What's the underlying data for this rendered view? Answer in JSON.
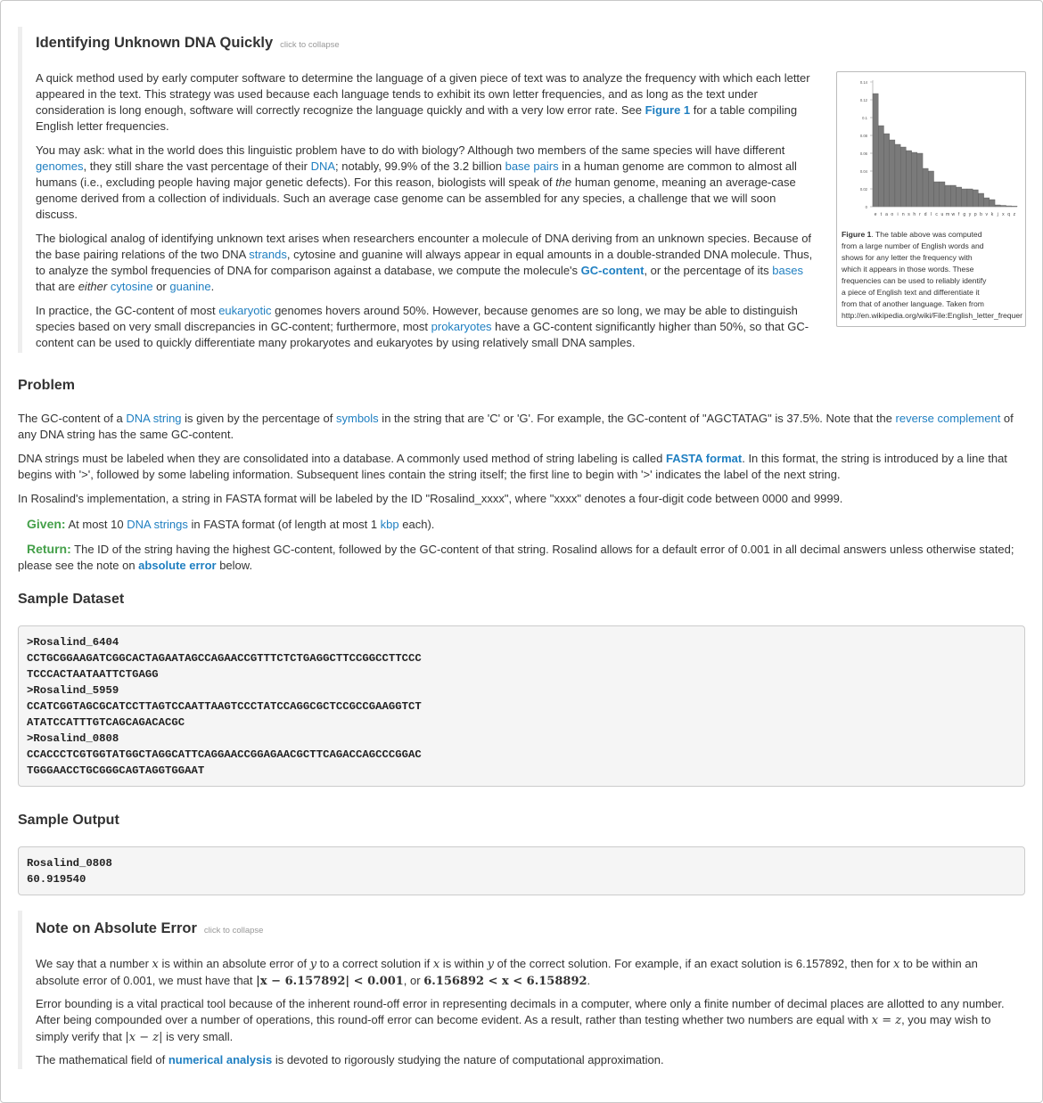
{
  "intro": {
    "title": "Identifying Unknown DNA Quickly",
    "collapse": "click to collapse",
    "p1": {
      "a": "A quick method used by early computer software to determine the language of a given piece of text was to analyze the frequency with which each letter appeared in the text. This strategy was used because each language tends to exhibit its own letter frequencies, and as long as the text under consideration is long enough, software will correctly recognize the language quickly and with a very low error rate. See ",
      "link": "Figure 1",
      "b": " for a table compiling English letter frequencies."
    },
    "p2": {
      "a": "You may ask: what in the world does this linguistic problem have to do with biology? Although two members of the same species will have different ",
      "genomes": "genomes",
      "b": ", they still share the vast percentage of their ",
      "dna": "DNA",
      "c": "; notably, 99.9% of the 3.2 billion ",
      "base_pairs": "base pairs",
      "d": " in a human genome are common to almost all humans (i.e., excluding people having major genetic defects). For this reason, biologists will speak of ",
      "the": "the",
      "e": " human genome, meaning an average-case genome derived from a collection of individuals. Such an average case genome can be assembled for any species, a challenge that we will soon discuss."
    },
    "p3": {
      "a": "The biological analog of identifying unknown text arises when researchers encounter a molecule of DNA deriving from an unknown species. Because of the base pairing relations of the two DNA ",
      "strands": "strands",
      "b": ", cytosine and guanine will always appear in equal amounts in a double-stranded DNA molecule. Thus, to analyze the symbol frequencies of DNA for comparison against a database, we compute the molecule's ",
      "gc": "GC-content",
      "c": ", or the percentage of its ",
      "bases": "bases",
      "d": " that are ",
      "either": "either",
      "e": " ",
      "cytosine": "cytosine",
      "f": " or ",
      "guanine": "guanine",
      "g": "."
    },
    "p4": {
      "a": "In practice, the GC-content of most ",
      "eukaryotic": "eukaryotic",
      "b": " genomes hovers around 50%. However, because genomes are so long, we may be able to distinguish species based on very small discrepancies in GC-content; furthermore, most ",
      "prokaryotes": "prokaryotes",
      "c": " have a GC-content significantly higher than 50%, so that GC-content can be used to quickly differentiate many prokaryotes and eukaryotes by using relatively small DNA samples."
    },
    "figure": {
      "caption_label": "Figure 1",
      "caption_lines": [
        ". The table above was computed",
        "from a large number of English words and",
        "shows for any letter the frequency with",
        "which it appears in those words. These",
        "frequencies can be used to reliably identify",
        "a piece of English text and differentiate it",
        "from that of another language. Taken from",
        "http://en.wikipedia.org/wiki/File:English_letter_frequency_(frequency).svg"
      ]
    }
  },
  "chart_data": {
    "type": "bar",
    "categories": [
      "e",
      "t",
      "a",
      "o",
      "i",
      "n",
      "s",
      "h",
      "r",
      "d",
      "l",
      "c",
      "u",
      "m",
      "w",
      "f",
      "g",
      "y",
      "p",
      "b",
      "v",
      "k",
      "j",
      "x",
      "q",
      "z"
    ],
    "values": [
      0.127,
      0.091,
      0.082,
      0.075,
      0.07,
      0.067,
      0.063,
      0.061,
      0.06,
      0.043,
      0.04,
      0.028,
      0.028,
      0.024,
      0.024,
      0.022,
      0.02,
      0.02,
      0.019,
      0.015,
      0.01,
      0.008,
      0.002,
      0.0015,
      0.001,
      0.0007
    ],
    "ylim": [
      0,
      0.14
    ],
    "yticks": [
      "0",
      "0.02",
      "0.04",
      "0.06",
      "0.08",
      "0.1",
      "0.12",
      "0.14"
    ],
    "bar_color": "#7a7a7a"
  },
  "problem": {
    "heading": "Problem",
    "p1": {
      "a": "The GC-content of a ",
      "dna_string": "DNA string",
      "b": " is given by the percentage of ",
      "symbols": "symbols",
      "c": " in the string that are 'C' or 'G'. For example, the GC-content of \"AGCTATAG\" is 37.5%. Note that the ",
      "revcomp": "reverse complement",
      "d": " of any DNA string has the same GC-content."
    },
    "p2": {
      "a": "DNA strings must be labeled when they are consolidated into a database. A commonly used method of string labeling is called ",
      "fasta": "FASTA format",
      "b": ". In this format, the string is introduced by a line that begins with '>', followed by some labeling information. Subsequent lines contain the string itself; the first line to begin with '>' indicates the label of the next string."
    },
    "p3": "In Rosalind's implementation, a string in FASTA format will be labeled by the ID \"Rosalind_xxxx\", where \"xxxx\" denotes a four-digit code between 0000 and 9999.",
    "given": {
      "label": "Given:",
      "a": " At most 10 ",
      "dna_strings": "DNA strings",
      "b": " in FASTA format (of length at most 1 ",
      "kbp": "kbp",
      "c": " each)."
    },
    "ret": {
      "label": "Return:",
      "a": " The ID of the string having the highest GC-content, followed by the GC-content of that string. Rosalind allows for a default error of 0.001 in all decimal answers unless otherwise stated; please see the note on ",
      "abs": "absolute error",
      "b": " below."
    }
  },
  "sample_dataset": {
    "heading": "Sample Dataset",
    "text": ">Rosalind_6404\nCCTGCGGAAGATCGGCACTAGAATAGCCAGAACCGTTTCTCTGAGGCTTCCGGCCTTCCC\nTCCCACTAATAATTCTGAGG\n>Rosalind_5959\nCCATCGGTAGCGCATCCTTAGTCCAATTAAGTCCCTATCCAGGCGCTCCGCCGAAGGTCT\nATATCCATTTGTCAGCAGACACGC\n>Rosalind_0808\nCCACCCTCGTGGTATGGCTAGGCATTCAGGAACCGGAGAACGCTTCAGACCAGCCCGGAC\nTGGGAACCTGCGGGCAGTAGGTGGAAT"
  },
  "sample_output": {
    "heading": "Sample Output",
    "text": "Rosalind_0808\n60.919540"
  },
  "note": {
    "title": "Note on Absolute Error",
    "collapse": "click to collapse",
    "p1": {
      "a": "We say that a number ",
      "x1": "x",
      "b": " is within an absolute error of ",
      "y1": "y",
      "c": " to a correct solution if ",
      "x2": "x",
      "d": " is within ",
      "y2": "y",
      "e": " of the correct solution. For example, if an exact solution is 6.157892, then for ",
      "x3": "x",
      "f": " to be within an absolute error of 0.001, we must have that ",
      "m1": "|x − 6.157892| < 0.001",
      "g": ", or ",
      "m2": "6.156892 < x < 6.158892",
      "h": "."
    },
    "p2": {
      "a": "Error bounding is a vital practical tool because of the inherent round-off error in representing decimals in a computer, where only a finite number of decimal places are allotted to any number. After being compounded over a number of operations, this round-off error can become evident. As a result, rather than testing whether two numbers are equal with ",
      "m1": "x = z",
      "b": ", you may wish to simply verify that ",
      "m2": "|x − z|",
      "c": " is very small."
    },
    "p3": {
      "a": "The mathematical field of ",
      "link": "numerical analysis",
      "b": " is devoted to rigorously studying the nature of computational approximation."
    }
  }
}
